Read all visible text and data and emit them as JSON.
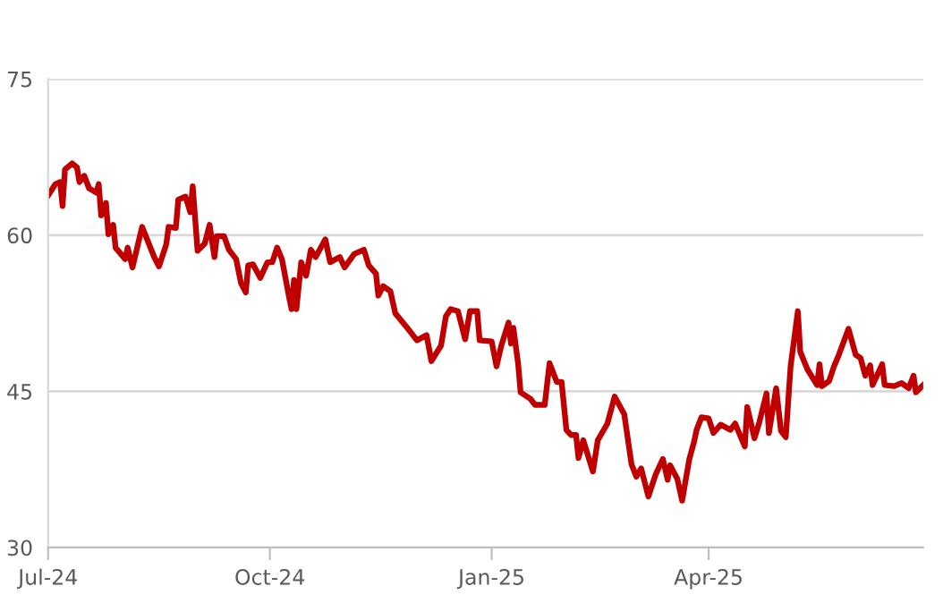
{
  "chart_data": {
    "type": "line",
    "x": [
      "2024-07-01",
      "2024-07-04",
      "2024-07-06",
      "2024-07-07",
      "2024-07-08",
      "2024-07-11",
      "2024-07-13",
      "2024-07-14",
      "2024-07-16",
      "2024-07-18",
      "2024-07-21",
      "2024-07-22",
      "2024-07-23",
      "2024-07-25",
      "2024-07-26",
      "2024-07-28",
      "2024-07-29",
      "2024-08-02",
      "2024-08-03",
      "2024-08-05",
      "2024-08-09",
      "2024-08-14",
      "2024-08-16",
      "2024-08-19",
      "2024-08-20",
      "2024-08-23",
      "2024-08-24",
      "2024-08-27",
      "2024-08-29",
      "2024-08-30",
      "2024-09-01",
      "2024-09-04",
      "2024-09-06",
      "2024-09-08",
      "2024-09-09",
      "2024-09-12",
      "2024-09-14",
      "2024-09-17",
      "2024-09-19",
      "2024-09-21",
      "2024-09-22",
      "2024-09-24",
      "2024-09-27",
      "2024-09-30",
      "2024-10-02",
      "2024-10-04",
      "2024-10-06",
      "2024-10-09",
      "2024-10-10",
      "2024-10-11",
      "2024-10-12",
      "2024-10-14",
      "2024-10-16",
      "2024-10-18",
      "2024-10-20",
      "2024-10-24",
      "2024-10-26",
      "2024-10-30",
      "2024-11-01",
      "2024-11-05",
      "2024-11-09",
      "2024-11-11",
      "2024-11-14",
      "2024-11-15",
      "2024-11-17",
      "2024-11-20",
      "2024-11-22",
      "2024-11-27",
      "2024-12-01",
      "2024-12-05",
      "2024-12-07",
      "2024-12-11",
      "2024-12-13",
      "2024-12-15",
      "2024-12-18",
      "2024-12-21",
      "2024-12-23",
      "2024-12-26",
      "2024-12-27",
      "2025-01-01",
      "2025-01-03",
      "2025-01-05",
      "2025-01-08",
      "2025-01-09",
      "2025-01-10",
      "2025-01-12",
      "2025-01-13",
      "2025-01-17",
      "2025-01-19",
      "2025-01-23",
      "2025-01-25",
      "2025-01-28",
      "2025-01-30",
      "2025-02-01",
      "2025-02-03",
      "2025-02-05",
      "2025-02-06",
      "2025-02-08",
      "2025-02-12",
      "2025-02-14",
      "2025-02-18",
      "2025-02-21",
      "2025-02-25",
      "2025-02-28",
      "2025-03-02",
      "2025-03-04",
      "2025-03-07",
      "2025-03-10",
      "2025-03-13",
      "2025-03-15",
      "2025-03-16",
      "2025-03-19",
      "2025-03-21",
      "2025-03-24",
      "2025-03-26",
      "2025-03-27",
      "2025-03-29",
      "2025-04-01",
      "2025-04-03",
      "2025-04-06",
      "2025-04-10",
      "2025-04-12",
      "2025-04-16",
      "2025-04-17",
      "2025-04-20",
      "2025-04-22",
      "2025-04-25",
      "2025-04-26",
      "2025-04-29",
      "2025-05-01",
      "2025-05-03",
      "2025-05-05",
      "2025-05-08",
      "2025-05-09",
      "2025-05-12",
      "2025-05-16",
      "2025-05-17",
      "2025-05-18",
      "2025-05-21",
      "2025-05-23",
      "2025-05-25",
      "2025-05-29",
      "2025-06-01",
      "2025-06-03",
      "2025-06-05",
      "2025-06-07",
      "2025-06-08",
      "2025-06-12",
      "2025-06-13",
      "2025-06-17",
      "2025-06-20",
      "2025-06-23",
      "2025-06-25",
      "2025-06-26",
      "2025-06-29"
    ],
    "series": [
      {
        "color": "#c00000",
        "values": [
          63.8,
          64.9,
          65.1,
          62.8,
          66.3,
          66.9,
          66.5,
          65.1,
          65.7,
          64.5,
          64.1,
          64.9,
          61.9,
          63.1,
          60.1,
          61.0,
          58.8,
          57.7,
          58.8,
          56.9,
          60.8,
          57.9,
          57.0,
          59.1,
          60.8,
          60.7,
          63.4,
          63.7,
          62.2,
          64.7,
          58.5,
          59.2,
          61.0,
          57.9,
          59.9,
          59.9,
          58.6,
          57.7,
          55.4,
          54.5,
          57.1,
          57.2,
          55.9,
          57.4,
          57.4,
          58.8,
          57.7,
          54.0,
          52.9,
          55.7,
          52.9,
          57.4,
          56.1,
          58.6,
          57.9,
          59.6,
          57.4,
          57.9,
          56.9,
          58.2,
          58.6,
          57.1,
          56.3,
          54.2,
          55.1,
          54.6,
          52.5,
          51.1,
          49.9,
          50.4,
          47.9,
          49.4,
          52.2,
          52.9,
          52.7,
          50.0,
          52.7,
          52.7,
          49.9,
          49.8,
          47.4,
          49.4,
          51.6,
          49.6,
          51.1,
          47.6,
          44.9,
          44.3,
          43.7,
          43.7,
          47.7,
          45.9,
          45.9,
          41.3,
          40.8,
          40.8,
          38.6,
          40.3,
          37.3,
          40.3,
          41.9,
          44.5,
          42.8,
          38.0,
          36.8,
          37.6,
          34.9,
          37.0,
          38.5,
          36.5,
          37.9,
          36.6,
          34.5,
          38.5,
          40.2,
          41.3,
          42.5,
          42.4,
          41.0,
          41.8,
          41.3,
          41.9,
          39.7,
          43.5,
          40.5,
          42.0,
          44.8,
          41.0,
          45.3,
          41.2,
          40.6,
          47.4,
          52.7,
          48.8,
          47.1,
          45.6,
          47.6,
          45.5,
          46.0,
          47.4,
          48.5,
          51.0,
          48.5,
          48.2,
          46.5,
          47.5,
          45.6,
          47.6,
          45.6,
          45.5,
          45.8,
          45.3,
          46.5,
          44.9,
          45.6
        ]
      }
    ],
    "xlim": [
      "2024-07-01",
      "2025-06-29"
    ],
    "xticks": [
      {
        "value": "2024-07-01",
        "label": "Jul-24"
      },
      {
        "value": "2024-10-01",
        "label": "Oct-24"
      },
      {
        "value": "2025-01-01",
        "label": "Jan-25"
      },
      {
        "value": "2025-04-01",
        "label": "Apr-25"
      }
    ],
    "ylim": [
      30,
      75
    ],
    "yticks": [
      30,
      45,
      60,
      75
    ],
    "grid": "y",
    "marker": "none",
    "line_style": "solid"
  }
}
